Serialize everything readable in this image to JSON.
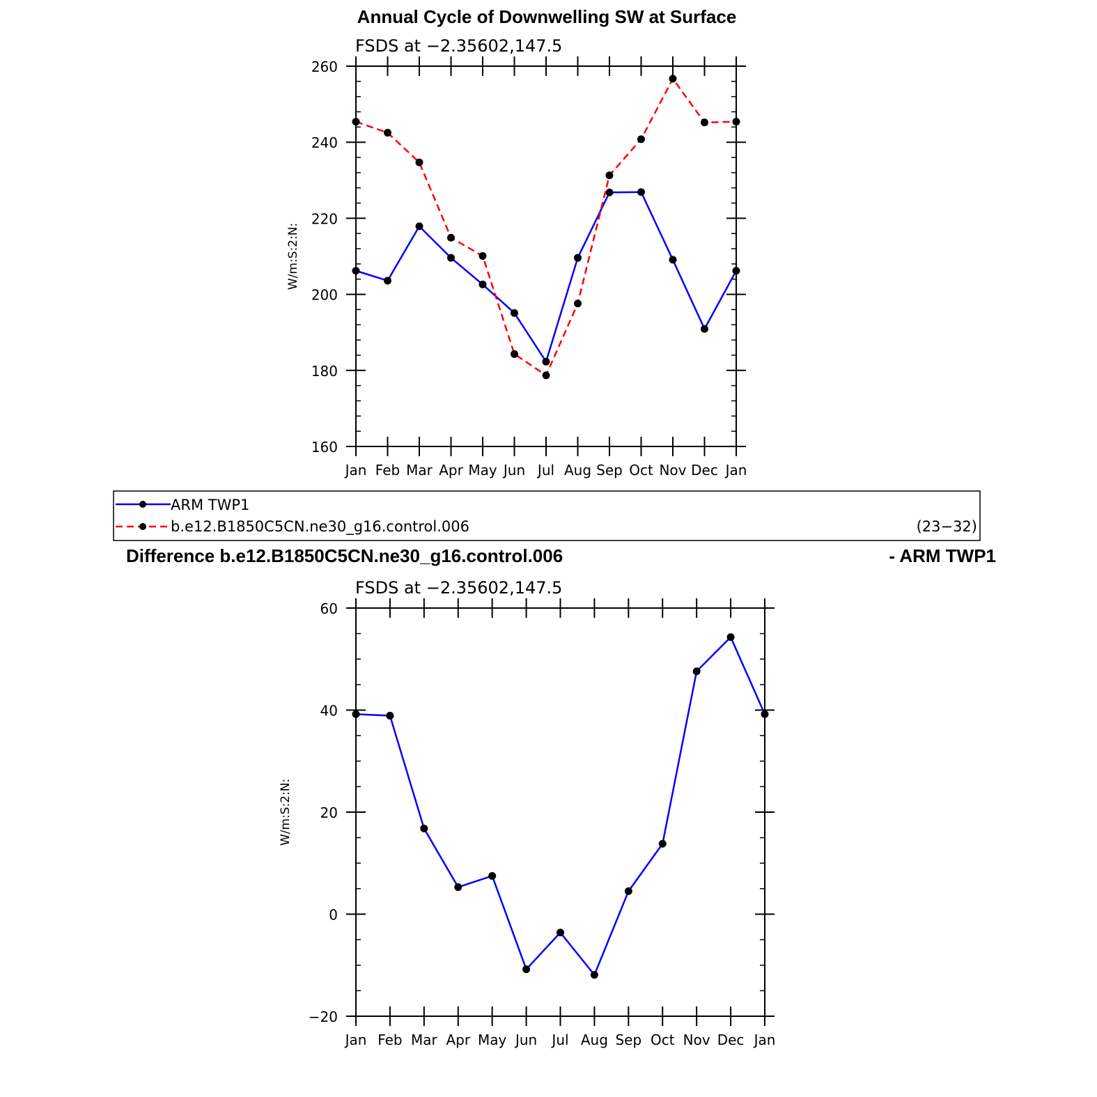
{
  "header": {
    "title": "Annual Cycle of Downwelling SW at Surface"
  },
  "legend": {
    "entries": [
      "ARM TWP1",
      "b.e12.B1850C5CN.ne30_g16.control.006"
    ],
    "years": "(23−32)"
  },
  "diff_header": {
    "title_left": "Difference b.e12.B1850C5CN.ne30_g16.control.006",
    "title_right": "- ARM TWP1"
  },
  "chart_data": [
    {
      "type": "line",
      "title": "Annual Cycle of Downwelling SW at Surface",
      "subtitle": "FSDS at −2.35602,147.5",
      "ylabel": "W/m:S:2:N:",
      "ylim": [
        160,
        260
      ],
      "yticks": [
        "160",
        "180",
        "200",
        "220",
        "240",
        "260"
      ],
      "categories": [
        "Jan",
        "Feb",
        "Mar",
        "Apr",
        "May",
        "Jun",
        "Jul",
        "Aug",
        "Sep",
        "Oct",
        "Nov",
        "Dec",
        "Jan"
      ],
      "grid": false,
      "series": [
        {
          "name": "ARM TWP1",
          "color": "#0000ff",
          "dash": "solid",
          "values": [
            206.2,
            203.6,
            217.9,
            209.6,
            202.6,
            195.1,
            182.3,
            209.6,
            226.8,
            226.9,
            209.1,
            190.9,
            206.2
          ]
        },
        {
          "name": "b.e12.B1850C5CN.ne30_g16.control.006",
          "color": "#ff0000",
          "dash": "dashed",
          "values": [
            245.4,
            242.5,
            234.7,
            214.9,
            210.1,
            184.3,
            178.7,
            197.6,
            231.3,
            240.8,
            256.7,
            245.2,
            245.4
          ]
        }
      ]
    },
    {
      "type": "line",
      "title": "Difference b.e12.B1850C5CN.ne30_g16.control.006 - ARM TWP1",
      "subtitle": "FSDS at −2.35602,147.5",
      "ylabel": "W/m:S:2:N:",
      "ylim": [
        -20,
        60
      ],
      "yticks": [
        "−20",
        "0",
        "20",
        "40",
        "60"
      ],
      "categories": [
        "Jan",
        "Feb",
        "Mar",
        "Apr",
        "May",
        "Jun",
        "Jul",
        "Aug",
        "Sep",
        "Oct",
        "Nov",
        "Dec",
        "Jan"
      ],
      "grid": false,
      "series": [
        {
          "color": "#0000ff",
          "dash": "solid",
          "values": [
            39.2,
            38.9,
            16.8,
            5.3,
            7.5,
            -10.8,
            -3.6,
            -11.9,
            4.5,
            13.8,
            47.6,
            54.3,
            39.2
          ]
        }
      ]
    }
  ]
}
